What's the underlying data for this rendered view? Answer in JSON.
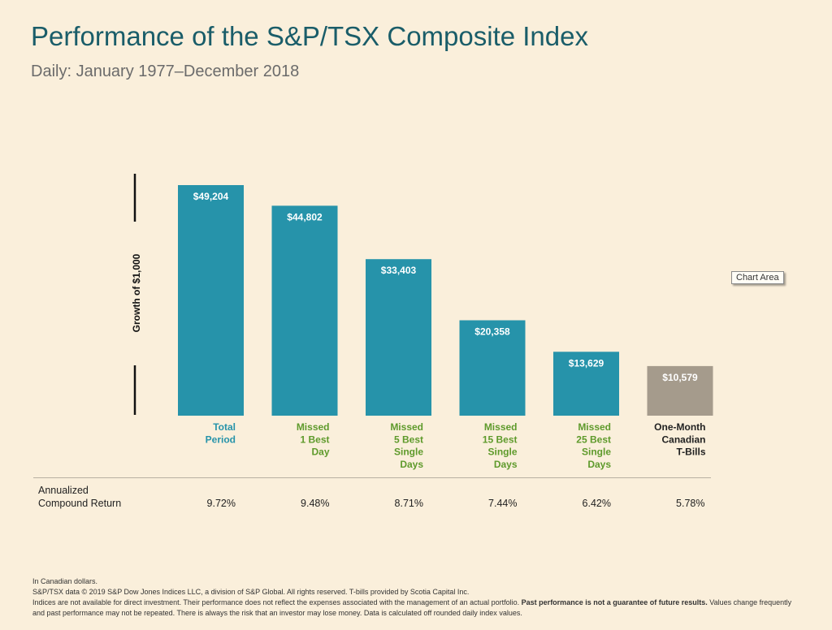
{
  "header": {
    "title": "Performance of the S&P/TSX Composite Index",
    "subtitle": "Daily: January 1977–December 2018"
  },
  "tooltip": {
    "label": "Chart Area"
  },
  "colors": {
    "teal_bar": "#2693aa",
    "tbill_bar": "#a59b8c",
    "teal_text": "#2693aa",
    "green_text": "#5e9a2b",
    "dark_text": "#222222"
  },
  "chart_data": {
    "type": "bar",
    "ylabel": "Growth of $1,000",
    "ylim": [
      0,
      55000
    ],
    "categories": [
      [
        "Total",
        "Period"
      ],
      [
        "Missed",
        "1 Best",
        "Day"
      ],
      [
        "Missed",
        "5 Best",
        "Single",
        "Days"
      ],
      [
        "Missed",
        "15 Best",
        "Single",
        "Days"
      ],
      [
        "Missed",
        "25 Best",
        "Single",
        "Days"
      ],
      [
        "One-Month",
        "Canadian",
        "T-Bills"
      ]
    ],
    "values": [
      49204,
      44802,
      33403,
      20358,
      13629,
      10579
    ],
    "data_labels": [
      "$49,204",
      "$44,802",
      "$33,403",
      "$20,358",
      "$13,629",
      "$10,579"
    ]
  },
  "table": {
    "row_label_line1": "Annualized",
    "row_label_line2": "Compound Return",
    "rates": [
      "9.72%",
      "9.48%",
      "8.71%",
      "7.44%",
      "6.42%",
      "5.78%"
    ]
  },
  "footnotes": {
    "line1": "In Canadian dollars.",
    "line2": "S&P/TSX data © 2019 S&P Dow Jones Indices LLC, a division of S&P Global. All rights reserved. T-bills provided by Scotia Capital Inc.",
    "line3_a": "Indices are not available for direct investment. Their performance does not reflect the expenses associated with the management of an actual portfolio. ",
    "line3_bold": "Past performance is not a guarantee of future results.",
    "line3_b": " Values change frequently",
    "line4": "and past performance may not be repeated. There is always the risk that an investor may lose money. Data is calculated off rounded daily index values."
  }
}
